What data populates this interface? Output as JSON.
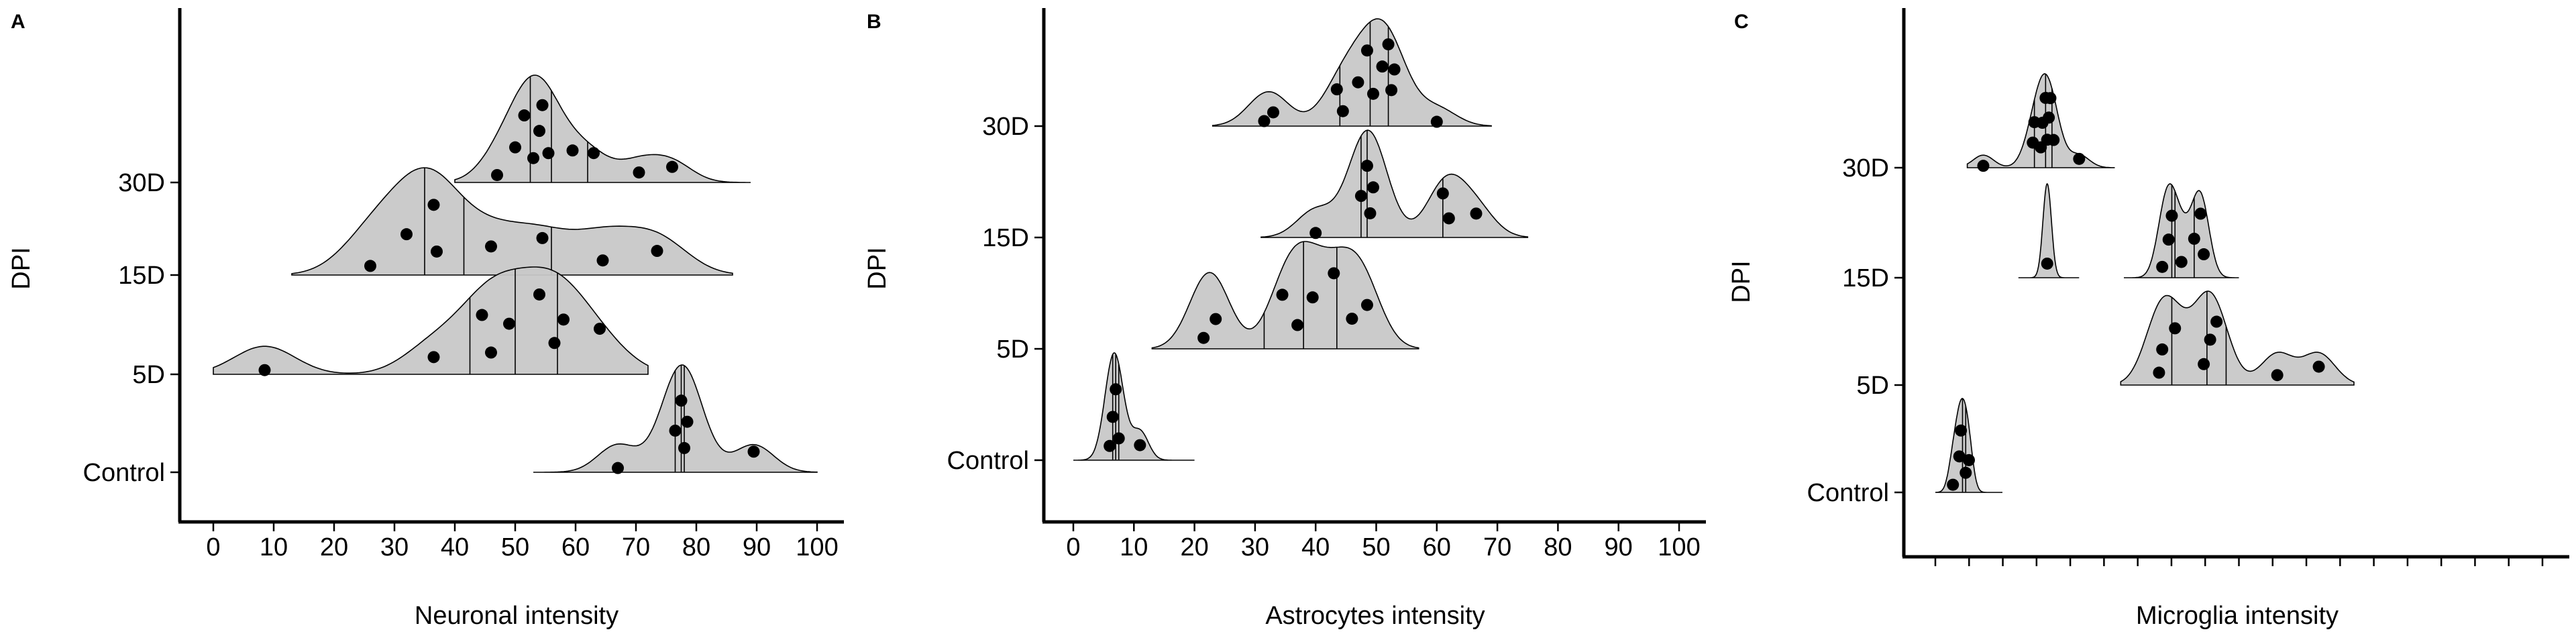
{
  "chart_data": [
    {
      "type": "ridgeline",
      "panel": "A",
      "xlabel": "Neuronal intensity",
      "ylabel": "DPI",
      "xlim": [
        0,
        100
      ],
      "x_ticks": [
        "0",
        "10",
        "20",
        "30",
        "40",
        "50",
        "60",
        "70",
        "80",
        "90",
        "100"
      ],
      "categories": [
        "Control",
        "5D",
        "15D",
        "30D"
      ],
      "ridges": [
        {
          "category": "Control",
          "range": [
            53,
            100
          ],
          "points": [
            67,
            76.5,
            77.5,
            78,
            78.5,
            89.5
          ],
          "quantiles": [
            76.5,
            77.5,
            78
          ]
        },
        {
          "category": "5D",
          "range": [
            0,
            72
          ],
          "points": [
            8.5,
            36.5,
            44.5,
            46,
            49,
            54,
            56.5,
            58,
            64
          ],
          "quantiles": [
            42.5,
            50,
            57
          ]
        },
        {
          "category": "15D",
          "range": [
            13,
            86
          ],
          "points": [
            26,
            32,
            36.5,
            37,
            46,
            54.5,
            64.5,
            73.5
          ],
          "quantiles": [
            35,
            41.5,
            56
          ]
        },
        {
          "category": "30D",
          "range": [
            40,
            89
          ],
          "points": [
            47,
            50,
            51.5,
            53,
            54,
            54.5,
            55.5,
            59.5,
            63,
            70.5,
            76
          ],
          "quantiles": [
            52.5,
            56,
            62
          ]
        }
      ]
    },
    {
      "type": "ridgeline",
      "panel": "B",
      "xlabel": "Astrocytes intensity",
      "ylabel": "DPI",
      "xlim": [
        0,
        100
      ],
      "x_ticks": [
        "0",
        "10",
        "20",
        "30",
        "40",
        "50",
        "60",
        "70",
        "80",
        "90",
        "100"
      ],
      "categories": [
        "Control",
        "5D",
        "15D",
        "30D"
      ],
      "ridges": [
        {
          "category": "Control",
          "range": [
            0,
            20
          ],
          "points": [
            6,
            6.5,
            7,
            7.5,
            11
          ],
          "quantiles": [
            6.5,
            7,
            7.5
          ]
        },
        {
          "category": "5D",
          "range": [
            13,
            57
          ],
          "points": [
            21.5,
            23.5,
            34.5,
            37,
            39.5,
            43,
            46,
            48.5
          ],
          "quantiles": [
            31.5,
            38,
            43.5
          ]
        },
        {
          "category": "15D",
          "range": [
            31,
            75
          ],
          "points": [
            40,
            47.5,
            48.5,
            49,
            49.5,
            61,
            62,
            66.5
          ],
          "quantiles": [
            47.5,
            48.5,
            61
          ]
        },
        {
          "category": "30D",
          "range": [
            23,
            69
          ],
          "points": [
            31.5,
            33,
            43.5,
            44.5,
            47,
            48.5,
            49.5,
            51,
            52,
            52.5,
            53,
            60
          ],
          "quantiles": [
            44,
            49,
            52
          ]
        }
      ]
    },
    {
      "type": "ridgeline",
      "panel": "C",
      "xlabel": "Microglia intensity",
      "ylabel": "DPI",
      "categories": [
        "Control",
        "5D",
        "15D",
        "30D"
      ],
      "x_ticks": [
        "",
        "",
        "",
        "",
        "",
        "",
        "",
        "",
        "",
        "",
        "",
        "",
        "",
        "",
        "",
        "",
        "",
        "",
        ""
      ],
      "xlim": [
        0,
        19
      ],
      "ridges": [
        {
          "category": "Control",
          "range": [
            0.0,
            2.1
          ],
          "points": [
            0.55,
            0.75,
            0.8,
            0.95,
            1.05
          ],
          "quantiles": [
            0.85,
            0.95
          ]
        },
        {
          "category": "5D",
          "range": [
            5.8,
            13.1
          ],
          "points": [
            7.0,
            7.1,
            7.5,
            8.4,
            8.6,
            8.8,
            10.7,
            12.0
          ],
          "quantiles": [
            7.4,
            8.5,
            9.1
          ]
        },
        {
          "category": "15D",
          "range": [
            2.6,
            4.5
          ],
          "points": [
            3.5
          ],
          "quantiles": []
        },
        {
          "category": "15D",
          "range": [
            5.9,
            9.5
          ],
          "points": [
            7.1,
            7.3,
            7.4,
            7.7,
            8.1,
            8.3,
            8.4
          ],
          "quantiles": [
            7.4,
            7.5,
            8.1
          ]
        },
        {
          "category": "30D",
          "range": [
            1.0,
            5.6
          ],
          "points": [
            1.5,
            3.05,
            3.1,
            3.3,
            3.35,
            3.45,
            3.5,
            3.55,
            3.6,
            3.7,
            4.5
          ],
          "quantiles": [
            3.1,
            3.45,
            3.65
          ]
        }
      ]
    }
  ]
}
